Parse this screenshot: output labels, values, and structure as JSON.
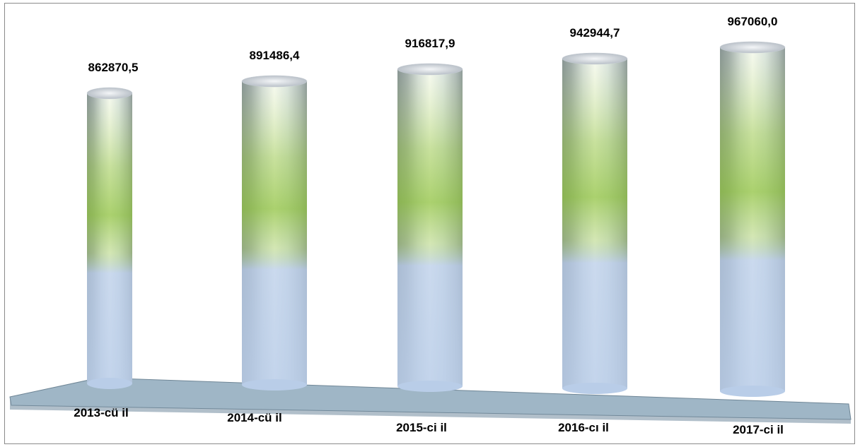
{
  "chart_data": {
    "type": "bar",
    "style": "3d-cylinder",
    "categories": [
      "2013-cü il",
      "2014-cü il",
      "2015-ci il",
      "2016-cı il",
      "2017-ci il"
    ],
    "values": [
      862870.5,
      891486.4,
      916817.9,
      942944.7,
      967060.0
    ],
    "value_labels": [
      "862870,5",
      "891486,4",
      "916817,9",
      "942944,7",
      "967060,0"
    ],
    "title": "",
    "xlabel": "",
    "ylabel": "",
    "grid": false,
    "legend": "none",
    "colors": {
      "green": "#8fc23e",
      "blue": "#b9cde8",
      "gray": "#9aa3ad",
      "floor": "#9fb6c6"
    }
  }
}
